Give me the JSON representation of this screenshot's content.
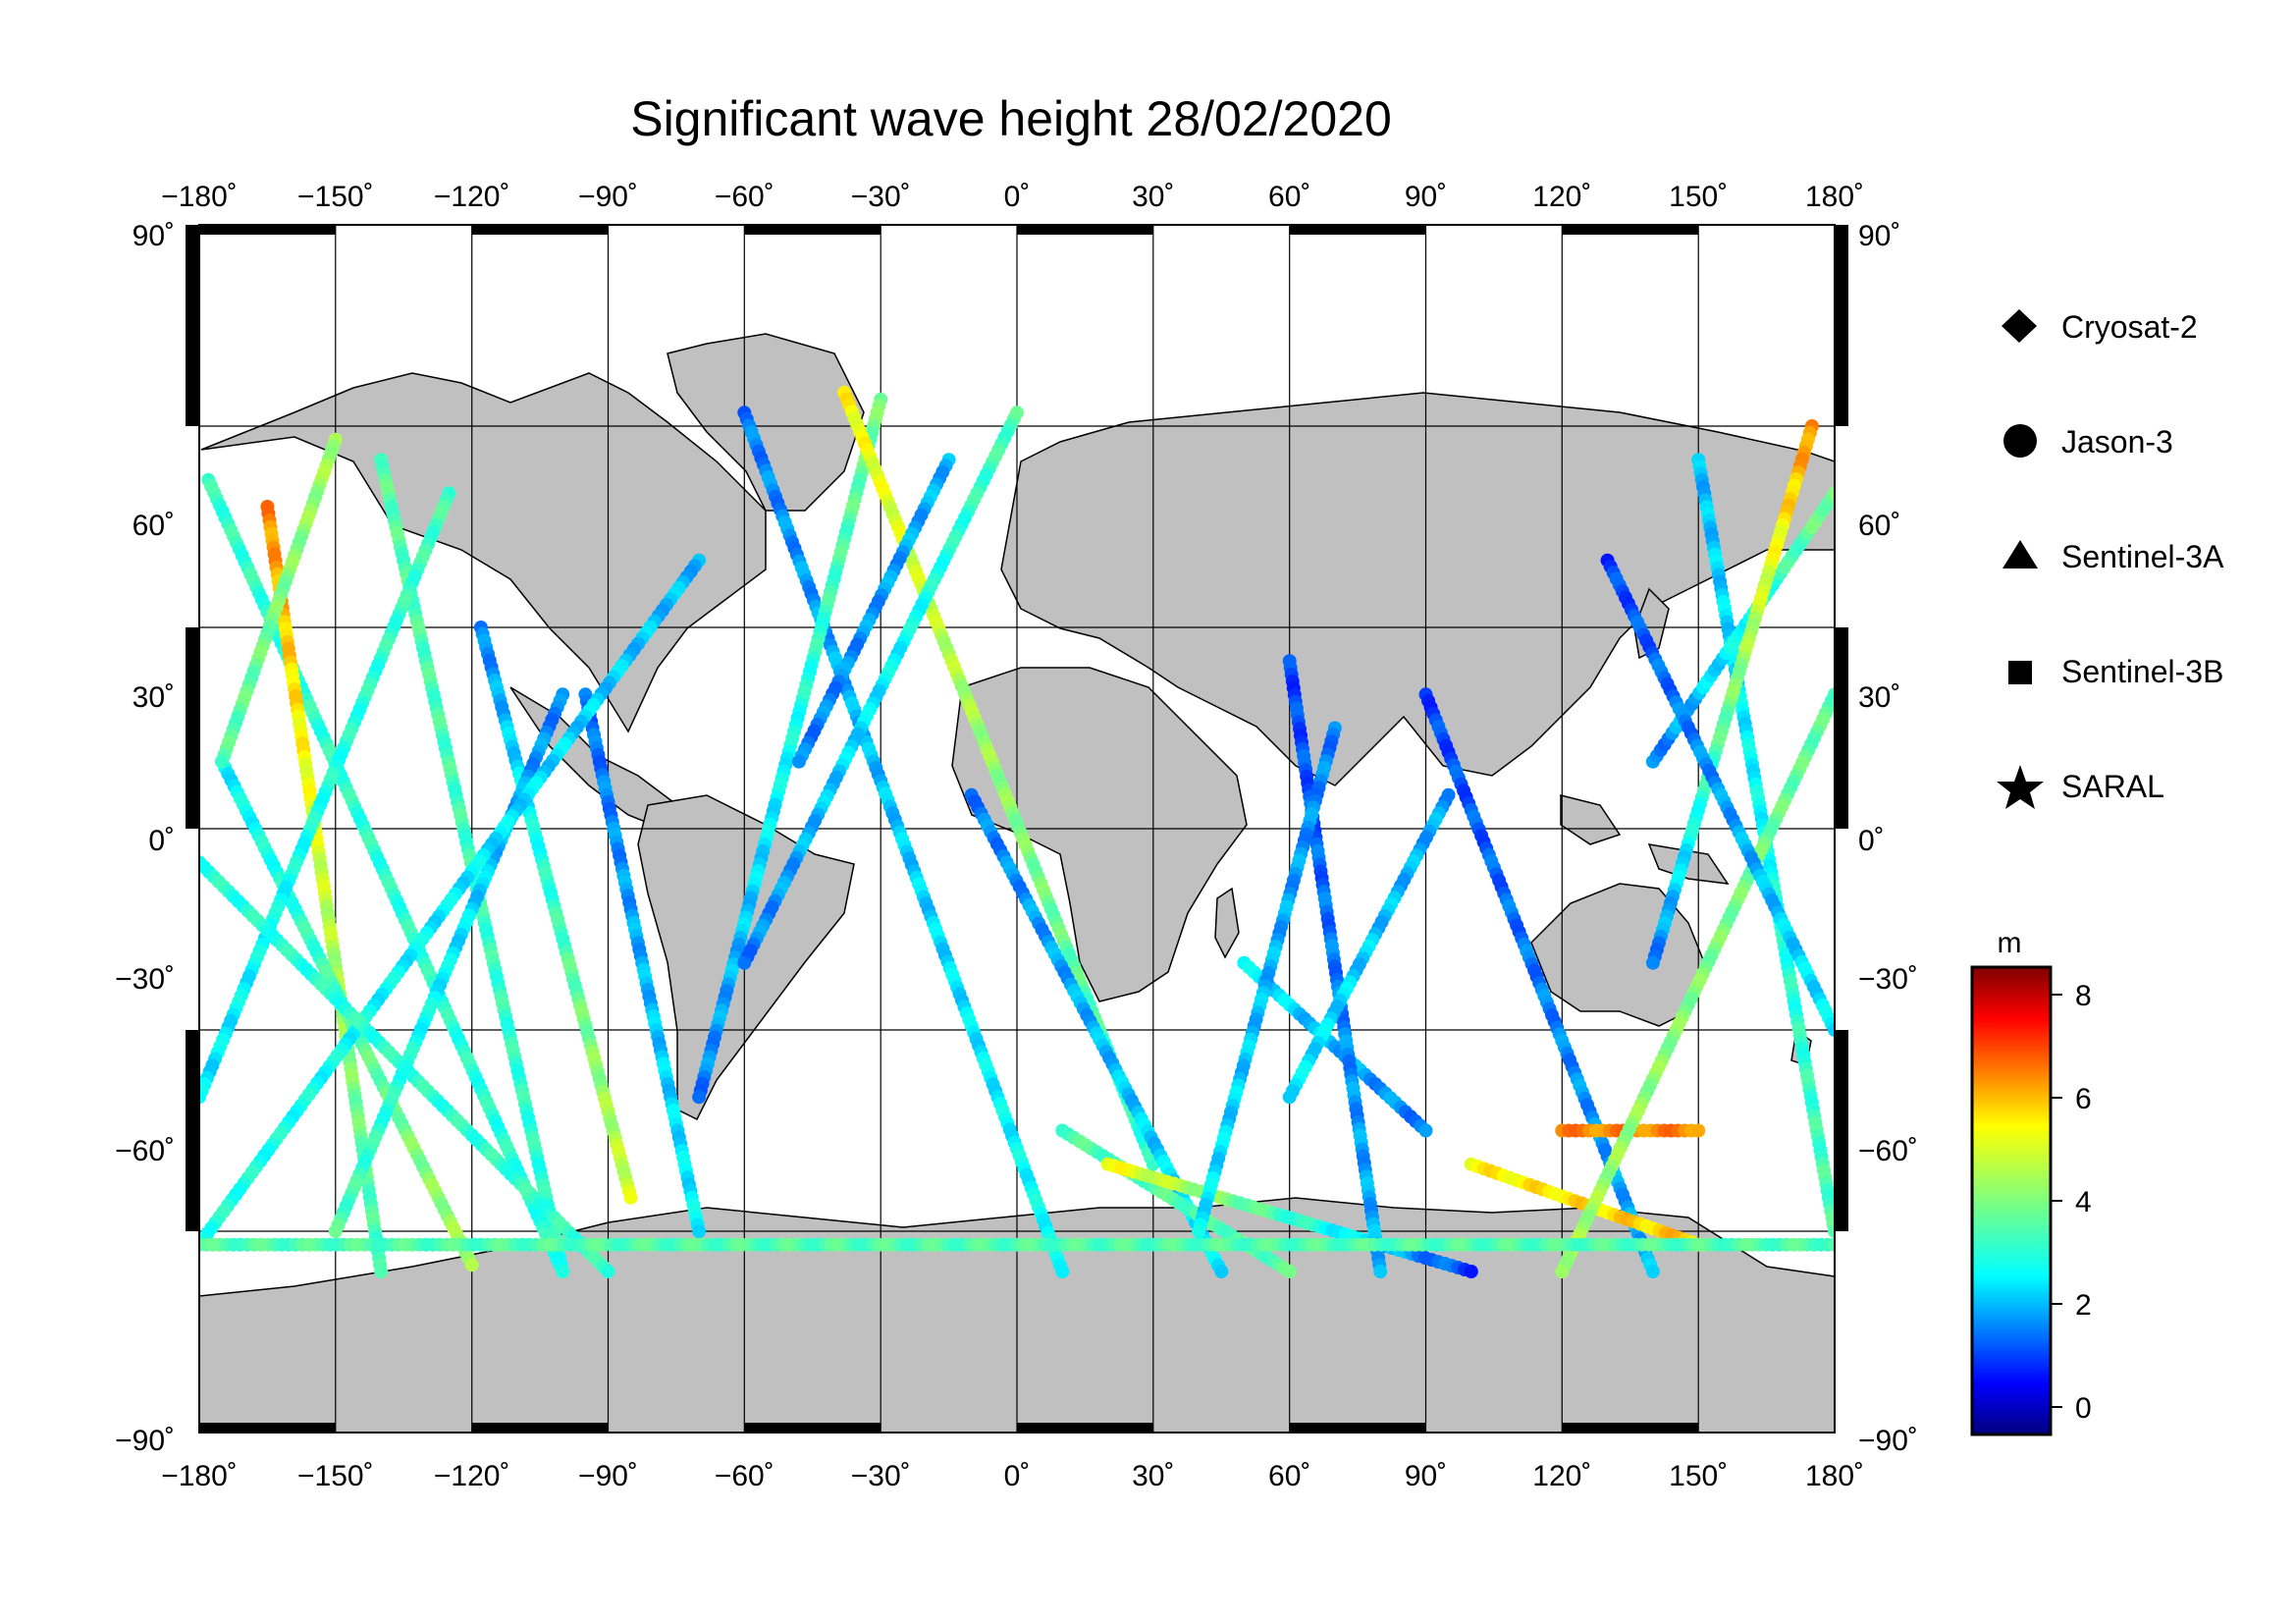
{
  "title": "Significant wave height 28/02/2020",
  "map": {
    "projection": "equirectangular",
    "lon_range": [
      -180,
      180
    ],
    "lat_range": [
      -90,
      90
    ],
    "lon_ticks": [
      "−180˚",
      "−150˚",
      "−120˚",
      "−90˚",
      "−60˚",
      "−30˚",
      "0˚",
      "30˚",
      "60˚",
      "90˚",
      "120˚",
      "150˚",
      "180˚"
    ],
    "lat_ticks_left": [
      "90˚",
      "60˚",
      "30˚",
      "0˚",
      "−30˚",
      "−60˚",
      "−90˚"
    ],
    "lat_ticks_right": [
      "90˚",
      "60˚",
      "30˚",
      "0˚",
      "−30˚",
      "−60˚",
      "−90˚"
    ],
    "land_color": "#c0c0c0",
    "ocean_color": "#ffffff",
    "grid": true
  },
  "legend": {
    "items": [
      {
        "label": "Cryosat-2",
        "marker": "diamond"
      },
      {
        "label": "Jason-3",
        "marker": "circle"
      },
      {
        "label": "Sentinel-3A",
        "marker": "triangle"
      },
      {
        "label": "Sentinel-3B",
        "marker": "square"
      },
      {
        "label": "SARAL",
        "marker": "star"
      }
    ]
  },
  "colorbar": {
    "unit": "m",
    "ticks": [
      "8",
      "6",
      "4",
      "2",
      "0"
    ],
    "range": [
      -0.5,
      8.6
    ],
    "colormap": "jet"
  },
  "chart_data": {
    "type": "scatter",
    "title": "Significant wave height 28/02/2020",
    "xlabel": "",
    "ylabel": "",
    "xlim": [
      -180,
      180
    ],
    "ylim": [
      -90,
      90
    ],
    "value_unit": "m",
    "tracks": [
      {
        "lon0": -178,
        "lat0": 52,
        "lon1": -100,
        "lat1": -66,
        "v0": 3.2,
        "v1": 3.0
      },
      {
        "lon0": -165,
        "lat0": 48,
        "lon1": -140,
        "lat1": -66,
        "v0": 6.5,
        "v1": 3.2
      },
      {
        "lon0": -175,
        "lat0": 10,
        "lon1": -120,
        "lat1": -65,
        "v0": 2.5,
        "v1": 4.5
      },
      {
        "lon0": -150,
        "lat0": 58,
        "lon1": -175,
        "lat1": 10,
        "v0": 4.5,
        "v1": 3.5
      },
      {
        "lon0": -140,
        "lat0": 55,
        "lon1": -100,
        "lat1": -66,
        "v0": 3.6,
        "v1": 3.0
      },
      {
        "lon0": -125,
        "lat0": 50,
        "lon1": -180,
        "lat1": -40,
        "v0": 3.4,
        "v1": 2.4
      },
      {
        "lon0": -118,
        "lat0": 30,
        "lon1": -85,
        "lat1": -55,
        "v0": 1.5,
        "v1": 5.0
      },
      {
        "lon0": -100,
        "lat0": 20,
        "lon1": -150,
        "lat1": -60,
        "v0": 1.5,
        "v1": 3.5
      },
      {
        "lon0": -95,
        "lat0": 20,
        "lon1": -70,
        "lat1": -60,
        "v0": 1.3,
        "v1": 2.6
      },
      {
        "lon0": -70,
        "lat0": 40,
        "lon1": -180,
        "lat1": -62,
        "v0": 2.0,
        "v1": 3.0
      },
      {
        "lon0": -180,
        "lat0": -5,
        "lon1": -90,
        "lat1": -66,
        "v0": 3.0,
        "v1": 3.2
      },
      {
        "lon0": -60,
        "lat0": 62,
        "lon1": 10,
        "lat1": -66,
        "v0": 1.5,
        "v1": 2.8
      },
      {
        "lon0": -30,
        "lat0": 64,
        "lon1": -70,
        "lat1": -40,
        "v0": 4.0,
        "v1": 1.5
      },
      {
        "lon0": -38,
        "lat0": 65,
        "lon1": 30,
        "lat1": -50,
        "v0": 5.5,
        "v1": 3.0
      },
      {
        "lon0": 0,
        "lat0": 62,
        "lon1": -60,
        "lat1": -20,
        "v0": 3.5,
        "v1": 1.5
      },
      {
        "lon0": -15,
        "lat0": 55,
        "lon1": -48,
        "lat1": 10,
        "v0": 2.0,
        "v1": 1.5
      },
      {
        "lon0": -10,
        "lat0": 5,
        "lon1": 45,
        "lat1": -66,
        "v0": 1.5,
        "v1": 2.5
      },
      {
        "lon0": 10,
        "lat0": -45,
        "lon1": 60,
        "lat1": -66,
        "v0": 3.5,
        "v1": 3.6
      },
      {
        "lon0": 20,
        "lat0": -50,
        "lon1": 100,
        "lat1": -66,
        "v0": 5.5,
        "v1": 1.0
      },
      {
        "lon0": 50,
        "lat0": -20,
        "lon1": 90,
        "lat1": -45,
        "v0": 2.5,
        "v1": 1.5
      },
      {
        "lon0": 60,
        "lat0": 25,
        "lon1": 80,
        "lat1": -66,
        "v0": 1.0,
        "v1": 2.0
      },
      {
        "lon0": 70,
        "lat0": 15,
        "lon1": 40,
        "lat1": -60,
        "v0": 1.5,
        "v1": 2.5
      },
      {
        "lon0": 90,
        "lat0": 20,
        "lon1": 140,
        "lat1": -66,
        "v0": 1.0,
        "v1": 2.0
      },
      {
        "lon0": 95,
        "lat0": 5,
        "lon1": 60,
        "lat1": -40,
        "v0": 1.8,
        "v1": 2.5
      },
      {
        "lon0": 100,
        "lat0": -50,
        "lon1": 150,
        "lat1": -62,
        "v0": 5.5,
        "v1": 6.0
      },
      {
        "lon0": 120,
        "lat0": -45,
        "lon1": 150,
        "lat1": -45,
        "v0": 6.5,
        "v1": 6.5
      },
      {
        "lon0": 150,
        "lat0": 55,
        "lon1": 180,
        "lat1": -60,
        "v0": 2.0,
        "v1": 3.5
      },
      {
        "lon0": 140,
        "lat0": 10,
        "lon1": 180,
        "lat1": 50,
        "v0": 1.5,
        "v1": 4.0
      },
      {
        "lon0": 175,
        "lat0": 60,
        "lon1": 140,
        "lat1": -20,
        "v0": 6.5,
        "v1": 1.5
      },
      {
        "lon0": 180,
        "lat0": 20,
        "lon1": 120,
        "lat1": -66,
        "v0": 3.6,
        "v1": 4.5
      },
      {
        "lon0": 130,
        "lat0": 40,
        "lon1": 180,
        "lat1": -30,
        "v0": 1.0,
        "v1": 2.5
      },
      {
        "lon0": -180,
        "lat0": -62,
        "lon1": 180,
        "lat1": -62,
        "v0": 3.5,
        "v1": 3.5
      }
    ]
  }
}
